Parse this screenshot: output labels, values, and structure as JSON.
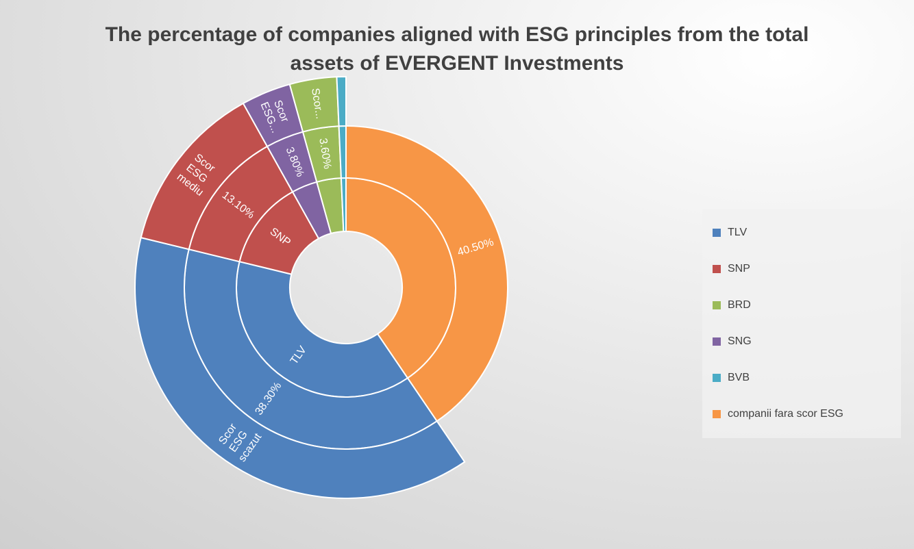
{
  "chart_data": {
    "type": "sunburst",
    "title": "The percentage of companies aligned with ESG principles from the total assets of EVERGENT Investments",
    "series": [
      {
        "name": "TLV",
        "color": "#4f81bd",
        "value": 38.3,
        "value_label": "38.30%",
        "score": "Scor ESG scazut"
      },
      {
        "name": "SNP",
        "color": "#c0504d",
        "value": 13.1,
        "value_label": "13.10%",
        "score": "Scor ESG mediu"
      },
      {
        "name": "BRD",
        "color": "#9bbb59",
        "value": 3.6,
        "value_label": "3.60%",
        "score": "Scor..."
      },
      {
        "name": "SNG",
        "color": "#8064a2",
        "value": 3.8,
        "value_label": "3.80%",
        "score": "Scor ESG..."
      },
      {
        "name": "BVB",
        "color": "#4bacc6",
        "value": 0.7,
        "score": null
      },
      {
        "name": "companii fara scor ESG",
        "color": "#f79646",
        "value": 40.5,
        "value_label": "40.50%"
      }
    ],
    "legend": "right"
  }
}
